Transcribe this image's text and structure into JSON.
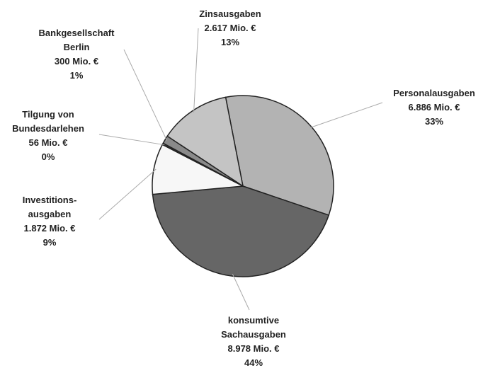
{
  "chart_data": {
    "type": "pie",
    "categories": [
      "Personalausgaben",
      "konsumtive\nSachausgaben",
      "Investitions-\nausgaben",
      "Tilgung von\nBundesdarlehen",
      "Bankgesellschaft\nBerlin",
      "Zinsausgaben"
    ],
    "values": [
      6886,
      8978,
      1872,
      56,
      300,
      2617
    ],
    "value_labels": [
      "6.886 Mio. €",
      "8.978 Mio. €",
      "1.872 Mio. €",
      "56 Mio. €",
      "300 Mio. €",
      "2.617 Mio. €"
    ],
    "percent_labels": [
      "33%",
      "44%",
      "9%",
      "0%",
      "1%",
      "13%"
    ],
    "colors": [
      "#b3b3b3",
      "#666666",
      "#f7f7f7",
      "#3a3a3a",
      "#8a8a8a",
      "#c4c4c4"
    ]
  }
}
